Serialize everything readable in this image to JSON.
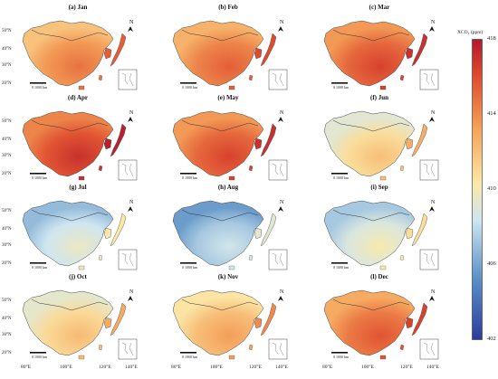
{
  "panels": [
    {
      "title": "(a) Jan",
      "level": 0.72
    },
    {
      "title": "(b) Feb",
      "level": 0.76
    },
    {
      "title": "(c) Mar",
      "level": 0.82
    },
    {
      "title": "(d) Apr",
      "level": 0.86
    },
    {
      "title": "(e) May",
      "level": 0.82
    },
    {
      "title": "(f) Jun",
      "level": 0.55
    },
    {
      "title": "(g) Jul",
      "level": 0.4
    },
    {
      "title": "(h) Aug",
      "level": 0.33
    },
    {
      "title": "(i) Sep",
      "level": 0.43
    },
    {
      "title": "(j) Oct",
      "level": 0.56
    },
    {
      "title": "(k) Nov",
      "level": 0.63
    },
    {
      "title": "(l) Dec",
      "level": 0.78
    }
  ],
  "lat_labels": [
    "50°N",
    "40°N",
    "30°N",
    "20°N"
  ],
  "lon_labels": [
    "80°E",
    "100°E",
    "120°E",
    "140°E"
  ],
  "north_label": "N",
  "scale_label": "0     1000 km",
  "colorbar": {
    "title": "XCO₂ (ppm)",
    "ticks": [
      "418",
      "414",
      "410",
      "406",
      "402"
    ],
    "min": 402,
    "max": 418,
    "colors": [
      "#2b3b9b",
      "#5b8fc5",
      "#cfe6f0",
      "#fbe8a8",
      "#f5a35a",
      "#de4a2e",
      "#b2182b"
    ]
  }
}
